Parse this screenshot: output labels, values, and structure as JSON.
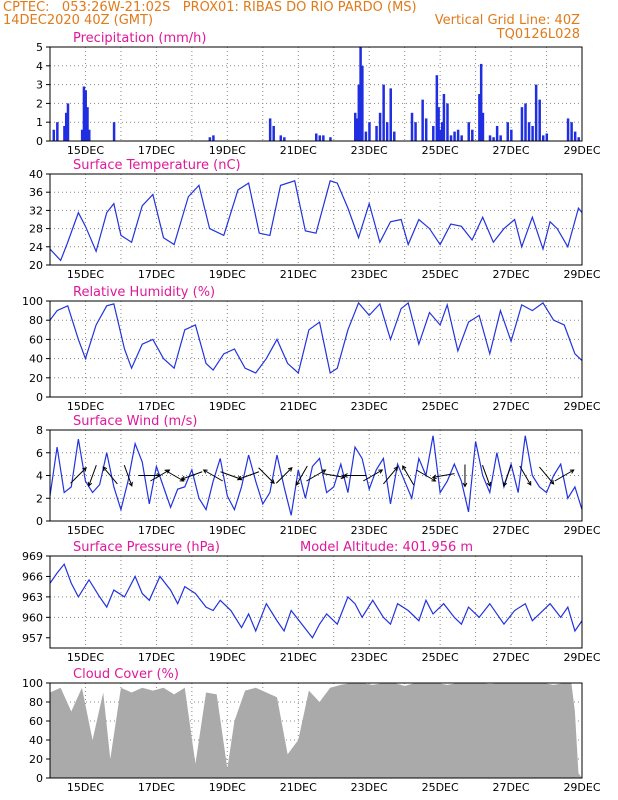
{
  "header": {
    "line1_left": "CPTEC:   053:26W-21:02S   PROX01: RIBAS DO RIO PARDO (MS)",
    "line2_left": "14DEC2020 40Z (GMT)",
    "line2_right": "Vertical Grid Line: 40Z",
    "line3_right": "TQ0126L028"
  },
  "colors": {
    "header": "#e07a1a",
    "title": "#e0189a",
    "line": "#2233dd",
    "bar": "#1f2ee0",
    "cloud": "#aaaaaa",
    "arrow": "#000000"
  },
  "chart_data": [
    {
      "id": "precip",
      "type": "bar",
      "title": "Precipitation (mm/h)",
      "ylim": [
        0,
        5
      ],
      "yticks": [
        "0",
        "1",
        "2",
        "3",
        "4",
        "5"
      ],
      "xlim": [
        14,
        29
      ],
      "xticks": [
        "15DEC",
        "17DEC",
        "19DEC",
        "21DEC",
        "23DEC",
        "25DEC",
        "27DEC",
        "29DEC"
      ],
      "grid": true,
      "x": [
        14.1,
        14.2,
        14.4,
        14.45,
        14.5,
        14.9,
        14.95,
        15.0,
        15.05,
        15.1,
        15.8,
        18.5,
        18.6,
        20.2,
        20.3,
        20.5,
        20.6,
        21.5,
        21.6,
        21.7,
        21.9,
        22.6,
        22.65,
        22.7,
        22.75,
        22.8,
        22.9,
        23.0,
        23.2,
        23.3,
        23.4,
        23.5,
        23.6,
        23.7,
        24.2,
        24.3,
        24.5,
        24.6,
        24.8,
        24.9,
        24.95,
        25.0,
        25.05,
        25.1,
        25.2,
        25.3,
        25.4,
        25.5,
        25.6,
        25.8,
        25.9,
        26.1,
        26.15,
        26.2,
        26.4,
        26.5,
        26.6,
        26.7,
        26.9,
        27.0,
        27.3,
        27.4,
        27.5,
        27.6,
        27.7,
        27.8,
        27.9,
        28.0,
        28.6,
        28.7,
        28.8,
        28.9
      ],
      "values": [
        0.6,
        1.0,
        0.8,
        1.5,
        2.0,
        0.6,
        2.9,
        2.7,
        1.8,
        0.6,
        1.0,
        0.2,
        0.3,
        1.2,
        0.8,
        0.3,
        0.2,
        0.4,
        0.3,
        0.3,
        0.2,
        1.5,
        1.2,
        3.0,
        5.0,
        4.0,
        0.5,
        1.0,
        0.8,
        1.5,
        3.0,
        1.0,
        2.8,
        0.5,
        1.5,
        1.0,
        2.2,
        1.2,
        0.8,
        3.5,
        1.8,
        0.6,
        1.0,
        2.5,
        2.0,
        0.3,
        0.5,
        0.6,
        0.3,
        1.0,
        0.6,
        2.5,
        4.1,
        1.5,
        0.3,
        0.2,
        0.8,
        0.3,
        1.0,
        0.6,
        1.8,
        2.0,
        1.0,
        0.8,
        3.0,
        2.2,
        0.3,
        0.4,
        1.2,
        1.0,
        0.5,
        0.2
      ]
    },
    {
      "id": "temp",
      "type": "line",
      "title": "Surface Temperature (nC)",
      "ylim": [
        20,
        40
      ],
      "yticks": [
        "20",
        "24",
        "28",
        "32",
        "36",
        "40"
      ],
      "xlim": [
        14,
        29
      ],
      "xticks": [
        "15DEC",
        "17DEC",
        "19DEC",
        "21DEC",
        "23DEC",
        "25DEC",
        "27DEC",
        "29DEC"
      ],
      "grid": true,
      "x": [
        14.0,
        14.3,
        14.5,
        14.8,
        15.0,
        15.3,
        15.6,
        15.8,
        16.0,
        16.3,
        16.6,
        16.9,
        17.2,
        17.5,
        17.9,
        18.2,
        18.5,
        18.9,
        19.3,
        19.6,
        19.9,
        20.2,
        20.5,
        20.9,
        21.2,
        21.5,
        21.9,
        22.1,
        22.4,
        22.7,
        23.0,
        23.3,
        23.6,
        23.9,
        24.1,
        24.4,
        24.7,
        25.0,
        25.3,
        25.6,
        25.9,
        26.2,
        26.5,
        26.8,
        27.1,
        27.3,
        27.6,
        27.9,
        28.1,
        28.3,
        28.6,
        28.9,
        29.0
      ],
      "values": [
        23.5,
        21.0,
        25.0,
        31.5,
        28.5,
        23.0,
        31.5,
        33.5,
        26.5,
        25.0,
        33.0,
        35.5,
        26.0,
        24.5,
        35.0,
        37.5,
        28.0,
        26.5,
        36.5,
        38.0,
        27.0,
        26.5,
        37.5,
        38.5,
        27.5,
        27.0,
        38.5,
        38.0,
        32.5,
        26.0,
        33.5,
        25.0,
        29.5,
        30.0,
        24.5,
        30.0,
        28.0,
        24.5,
        29.0,
        28.5,
        25.5,
        30.5,
        25.0,
        28.0,
        30.0,
        24.0,
        30.5,
        23.5,
        29.5,
        28.0,
        24.0,
        32.5,
        31.5
      ]
    },
    {
      "id": "rh",
      "type": "line",
      "title": "Relative Humidity (%)",
      "ylim": [
        0,
        100
      ],
      "yticks": [
        "0",
        "20",
        "40",
        "60",
        "80",
        "100"
      ],
      "xlim": [
        14,
        29
      ],
      "xticks": [
        "15DEC",
        "17DEC",
        "19DEC",
        "21DEC",
        "23DEC",
        "25DEC",
        "27DEC",
        "29DEC"
      ],
      "grid": true,
      "x": [
        14.0,
        14.2,
        14.5,
        14.8,
        15.0,
        15.3,
        15.6,
        15.8,
        16.1,
        16.3,
        16.6,
        16.9,
        17.2,
        17.5,
        17.8,
        18.1,
        18.4,
        18.6,
        18.9,
        19.2,
        19.5,
        19.8,
        20.1,
        20.4,
        20.7,
        21.0,
        21.3,
        21.6,
        21.9,
        22.1,
        22.4,
        22.7,
        23.0,
        23.3,
        23.6,
        23.9,
        24.1,
        24.4,
        24.7,
        25.0,
        25.2,
        25.5,
        25.8,
        26.1,
        26.4,
        26.7,
        27.0,
        27.3,
        27.6,
        27.9,
        28.2,
        28.5,
        28.8,
        29.0
      ],
      "values": [
        80,
        90,
        95,
        60,
        40,
        75,
        95,
        97,
        50,
        30,
        55,
        60,
        40,
        30,
        70,
        75,
        35,
        28,
        45,
        50,
        30,
        25,
        40,
        60,
        35,
        25,
        70,
        78,
        25,
        30,
        70,
        98,
        85,
        97,
        60,
        92,
        98,
        55,
        88,
        75,
        96,
        48,
        78,
        85,
        45,
        90,
        58,
        96,
        90,
        98,
        80,
        75,
        45,
        38
      ]
    },
    {
      "id": "wind",
      "type": "line",
      "title": "Surface Wind (m/s)",
      "ylim": [
        0,
        8
      ],
      "yticks": [
        "0",
        "2",
        "4",
        "6",
        "8"
      ],
      "xlim": [
        14,
        29
      ],
      "xticks": [
        "15DEC",
        "17DEC",
        "19DEC",
        "21DEC",
        "23DEC",
        "25DEC",
        "27DEC",
        "29DEC"
      ],
      "grid": true,
      "x": [
        14.0,
        14.2,
        14.4,
        14.6,
        14.8,
        15.0,
        15.2,
        15.4,
        15.6,
        15.8,
        16.0,
        16.2,
        16.4,
        16.6,
        16.8,
        17.0,
        17.2,
        17.4,
        17.6,
        17.8,
        18.0,
        18.2,
        18.4,
        18.6,
        18.8,
        19.0,
        19.2,
        19.4,
        19.6,
        19.8,
        20.0,
        20.2,
        20.4,
        20.6,
        20.8,
        21.0,
        21.2,
        21.4,
        21.6,
        21.8,
        22.0,
        22.2,
        22.4,
        22.6,
        22.8,
        23.0,
        23.2,
        23.4,
        23.6,
        23.8,
        24.0,
        24.2,
        24.4,
        24.6,
        24.8,
        25.0,
        25.2,
        25.4,
        25.6,
        25.8,
        26.0,
        26.2,
        26.4,
        26.6,
        26.8,
        27.0,
        27.2,
        27.4,
        27.6,
        27.8,
        28.0,
        28.2,
        28.4,
        28.6,
        28.8,
        29.0
      ],
      "values": [
        2.2,
        6.5,
        2.5,
        3.0,
        7.2,
        3.5,
        2.5,
        3.2,
        6.0,
        3.0,
        1.0,
        3.5,
        6.8,
        5.2,
        1.5,
        4.8,
        3.0,
        1.2,
        2.8,
        3.0,
        4.5,
        2.0,
        1.0,
        3.5,
        5.5,
        2.2,
        1.0,
        3.0,
        5.8,
        3.5,
        1.5,
        2.5,
        5.8,
        3.0,
        0.5,
        4.5,
        2.0,
        4.8,
        5.5,
        2.5,
        3.0,
        5.0,
        2.5,
        6.5,
        5.5,
        2.8,
        4.5,
        5.5,
        1.5,
        5.0,
        3.5,
        2.0,
        5.5,
        4.0,
        7.5,
        2.5,
        3.5,
        5.0,
        3.5,
        0.8,
        7.0,
        4.0,
        2.5,
        6.0,
        3.0,
        5.0,
        2.5,
        7.5,
        4.0,
        3.0,
        2.5,
        4.0,
        5.0,
        2.0,
        3.0,
        1.0
      ],
      "arrows": [
        {
          "x": 14.8,
          "dir": 45
        },
        {
          "x": 15.2,
          "dir": 200
        },
        {
          "x": 15.7,
          "dir": 320
        },
        {
          "x": 16.2,
          "dir": 160
        },
        {
          "x": 16.8,
          "dir": 90
        },
        {
          "x": 17.1,
          "dir": 60
        },
        {
          "x": 17.5,
          "dir": 120
        },
        {
          "x": 18.0,
          "dir": 250
        },
        {
          "x": 18.6,
          "dir": 300
        },
        {
          "x": 19.1,
          "dir": 110
        },
        {
          "x": 19.6,
          "dir": 250
        },
        {
          "x": 20.1,
          "dir": 135
        },
        {
          "x": 20.6,
          "dir": 45
        },
        {
          "x": 21.1,
          "dir": 210
        },
        {
          "x": 21.5,
          "dir": 60
        },
        {
          "x": 22.0,
          "dir": 100
        },
        {
          "x": 22.6,
          "dir": 270
        },
        {
          "x": 23.1,
          "dir": 60
        },
        {
          "x": 23.6,
          "dir": 40
        },
        {
          "x": 24.1,
          "dir": 330
        },
        {
          "x": 24.6,
          "dir": 120
        },
        {
          "x": 25.1,
          "dir": 260
        },
        {
          "x": 25.7,
          "dir": 180
        },
        {
          "x": 26.3,
          "dir": 160
        },
        {
          "x": 26.9,
          "dir": 200
        },
        {
          "x": 27.4,
          "dir": 150
        },
        {
          "x": 28.0,
          "dir": 140
        },
        {
          "x": 28.5,
          "dir": 60
        }
      ]
    },
    {
      "id": "pres",
      "type": "line",
      "title": "Surface Pressure (hPa)",
      "annotation": "Model Altitude: 401.956  m",
      "ylim": [
        955.5,
        969
      ],
      "yticks": [
        "957",
        "960",
        "963",
        "966",
        "969"
      ],
      "ytick_values": [
        957,
        960,
        963,
        966,
        969
      ],
      "xlim": [
        14,
        29
      ],
      "xticks": [
        "15DEC",
        "17DEC",
        "19DEC",
        "21DEC",
        "23DEC",
        "25DEC",
        "27DEC",
        "29DEC"
      ],
      "grid": true,
      "x": [
        14.0,
        14.2,
        14.4,
        14.6,
        14.8,
        15.1,
        15.4,
        15.6,
        15.8,
        16.1,
        16.4,
        16.6,
        16.8,
        17.1,
        17.4,
        17.6,
        17.8,
        18.1,
        18.4,
        18.6,
        18.8,
        19.1,
        19.4,
        19.6,
        19.8,
        20.1,
        20.4,
        20.6,
        20.8,
        21.1,
        21.4,
        21.6,
        21.8,
        22.1,
        22.4,
        22.6,
        22.8,
        23.1,
        23.4,
        23.6,
        23.8,
        24.1,
        24.4,
        24.6,
        24.8,
        25.1,
        25.4,
        25.6,
        25.8,
        26.1,
        26.4,
        26.6,
        26.8,
        27.1,
        27.4,
        27.6,
        27.8,
        28.1,
        28.4,
        28.6,
        28.8,
        29.0
      ],
      "values": [
        965.0,
        966.5,
        967.8,
        965.0,
        963.0,
        965.5,
        963.0,
        961.5,
        964.0,
        963.0,
        966.0,
        963.5,
        962.5,
        966.0,
        964.0,
        962.0,
        964.5,
        963.5,
        961.5,
        961.0,
        962.5,
        961.0,
        958.5,
        960.5,
        958.0,
        962.0,
        959.5,
        958.0,
        961.0,
        959.0,
        957.0,
        959.0,
        960.5,
        959.0,
        963.0,
        962.0,
        960.0,
        962.5,
        960.0,
        959.0,
        962.0,
        961.0,
        959.5,
        962.5,
        960.5,
        962.0,
        960.0,
        959.0,
        961.5,
        960.0,
        962.0,
        960.5,
        959.0,
        961.0,
        962.0,
        959.5,
        960.5,
        962.0,
        960.0,
        961.5,
        958.0,
        959.5
      ]
    },
    {
      "id": "cloud",
      "type": "area",
      "title": "Cloud Cover (%)",
      "ylim": [
        0,
        100
      ],
      "yticks": [
        "0",
        "20",
        "40",
        "60",
        "80",
        "100"
      ],
      "xlim": [
        14,
        29
      ],
      "xticks": [
        "15DEC",
        "17DEC",
        "19DEC",
        "21DEC",
        "23DEC",
        "25DEC",
        "27DEC",
        "29DEC"
      ],
      "grid": true,
      "x": [
        14.0,
        14.3,
        14.6,
        14.9,
        15.2,
        15.5,
        15.7,
        16.0,
        16.3,
        16.6,
        16.9,
        17.2,
        17.5,
        17.8,
        18.1,
        18.4,
        18.7,
        19.0,
        19.2,
        19.5,
        19.8,
        20.1,
        20.4,
        20.7,
        21.0,
        21.3,
        21.6,
        21.9,
        22.2,
        22.5,
        22.8,
        23.1,
        23.4,
        23.7,
        24.0,
        24.3,
        24.6,
        24.9,
        25.2,
        25.5,
        25.8,
        26.1,
        26.4,
        26.7,
        27.0,
        27.3,
        27.6,
        27.9,
        28.2,
        28.5,
        28.7,
        28.8,
        28.9,
        29.0
      ],
      "values": [
        90,
        95,
        70,
        95,
        40,
        90,
        20,
        95,
        90,
        95,
        92,
        95,
        88,
        95,
        15,
        90,
        88,
        10,
        60,
        92,
        95,
        90,
        85,
        25,
        40,
        92,
        80,
        95,
        98,
        100,
        100,
        98,
        100,
        100,
        97,
        100,
        100,
        100,
        98,
        100,
        100,
        100,
        99,
        100,
        100,
        100,
        100,
        100,
        98,
        100,
        100,
        70,
        5,
        0
      ]
    }
  ]
}
